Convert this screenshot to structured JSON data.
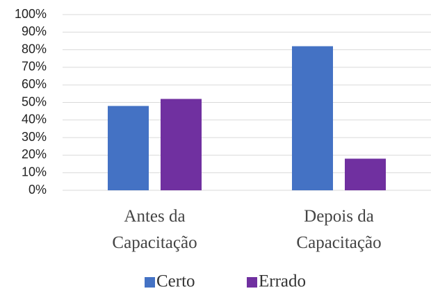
{
  "chart_data": {
    "type": "bar",
    "categories": [
      "Antes da Capacitação",
      "Depois da Capacitação"
    ],
    "series": [
      {
        "name": "Certo",
        "color": "#4472c4",
        "values": [
          48,
          82
        ]
      },
      {
        "name": "Errado",
        "color": "#7030a0",
        "values": [
          52,
          18
        ]
      }
    ],
    "ylim": [
      0,
      100
    ],
    "yticks": [
      {
        "value": 0,
        "label": "0%"
      },
      {
        "value": 10,
        "label": "10%"
      },
      {
        "value": 20,
        "label": "20%"
      },
      {
        "value": 30,
        "label": "30%"
      },
      {
        "value": 40,
        "label": "40%"
      },
      {
        "value": 50,
        "label": "50%"
      },
      {
        "value": 60,
        "label": "60%"
      },
      {
        "value": 70,
        "label": "70%"
      },
      {
        "value": 80,
        "label": "80%"
      },
      {
        "value": 90,
        "label": "90%"
      },
      {
        "value": 100,
        "label": "100%"
      }
    ],
    "grid": true,
    "legend": "bottom"
  }
}
